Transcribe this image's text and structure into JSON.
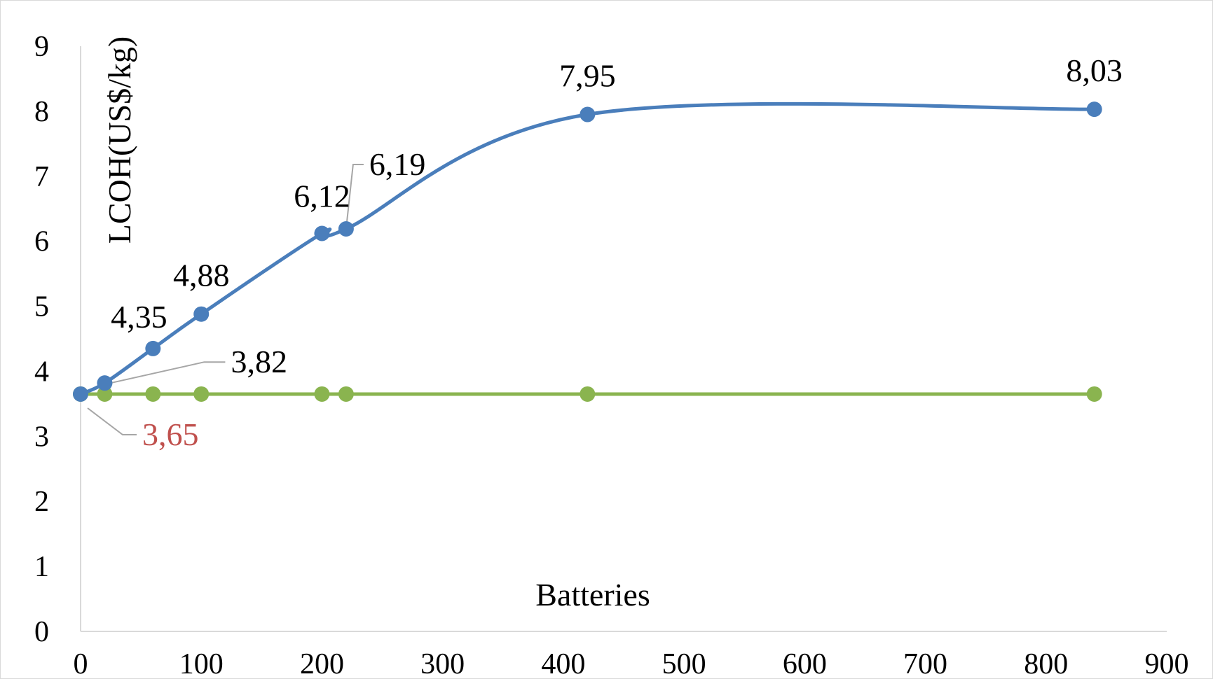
{
  "chart_data": {
    "type": "line",
    "title": "",
    "xlabel": "Batteries",
    "ylabel": "LCOH(US$/kg)",
    "xlim": [
      0,
      900
    ],
    "ylim": [
      0,
      9
    ],
    "x_ticks": [
      "0",
      "100",
      "200",
      "300",
      "400",
      "500",
      "600",
      "700",
      "800",
      "900"
    ],
    "y_ticks": [
      "0",
      "1",
      "2",
      "3",
      "4",
      "5",
      "6",
      "7",
      "8",
      "9"
    ],
    "grid": false,
    "legend": "none",
    "series": [
      {
        "color": "#4a7ebb",
        "smooth": true,
        "points": [
          {
            "x": 0,
            "y": 3.65
          },
          {
            "x": 20,
            "y": 3.82
          },
          {
            "x": 60,
            "y": 4.35
          },
          {
            "x": 100,
            "y": 4.88
          },
          {
            "x": 200,
            "y": 6.12
          },
          {
            "x": 220,
            "y": 6.19
          },
          {
            "x": 420,
            "y": 7.95
          },
          {
            "x": 840,
            "y": 8.03
          }
        ]
      },
      {
        "color": "#8ab44f",
        "smooth": false,
        "points": [
          {
            "x": 0,
            "y": 3.65
          },
          {
            "x": 20,
            "y": 3.65
          },
          {
            "x": 60,
            "y": 3.65
          },
          {
            "x": 100,
            "y": 3.65
          },
          {
            "x": 200,
            "y": 3.65
          },
          {
            "x": 220,
            "y": 3.65
          },
          {
            "x": 420,
            "y": 3.65
          },
          {
            "x": 840,
            "y": 3.65
          }
        ]
      }
    ],
    "data_labels": [
      {
        "text": "3,65",
        "color": "#c0504d",
        "series": 1,
        "point": 0
      },
      {
        "text": "3,82",
        "color": "#000000",
        "series": 0,
        "point": 1
      },
      {
        "text": "4,35",
        "color": "#000000",
        "series": 0,
        "point": 2
      },
      {
        "text": "4,88",
        "color": "#000000",
        "series": 0,
        "point": 3
      },
      {
        "text": "6,12",
        "color": "#000000",
        "series": 0,
        "point": 4
      },
      {
        "text": "6,19",
        "color": "#000000",
        "series": 0,
        "point": 5
      },
      {
        "text": "7,95",
        "color": "#000000",
        "series": 0,
        "point": 6
      },
      {
        "text": "8,03",
        "color": "#000000",
        "series": 0,
        "point": 7
      }
    ]
  }
}
